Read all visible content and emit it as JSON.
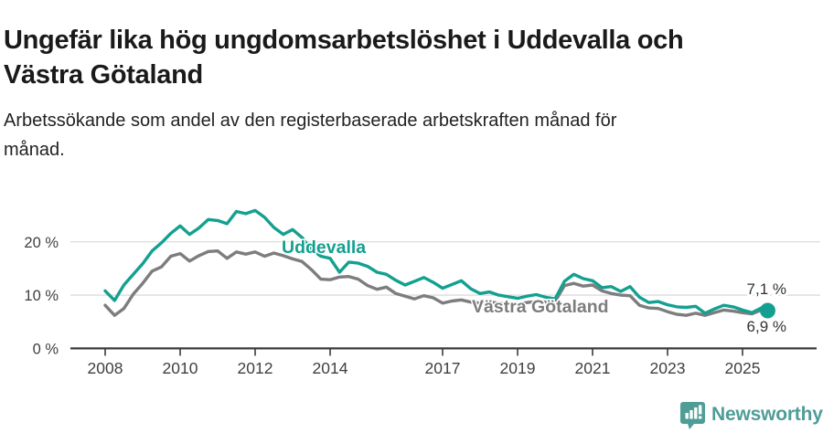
{
  "header": {
    "title": "Ungefär lika hög ungdomsarbetslöshet i Uddevalla och Västra Götaland",
    "title_lines": [
      "Ungefär lika hög ungdomsarbetslöshet i Uddevalla och",
      "Västra Götaland"
    ],
    "subtitle": "Arbetssökande som andel av den registerbaserade arbetskraften månad för månad.",
    "subtitle_lines": [
      "Arbetssökande som andel av den registerbaserade arbetskraften månad för",
      "månad."
    ]
  },
  "chart_data": {
    "type": "line",
    "x_label_note": "quarterly points, years 2008–2025",
    "x": [
      2008.0,
      2008.25,
      2008.5,
      2008.75,
      2009.0,
      2009.25,
      2009.5,
      2009.75,
      2010.0,
      2010.25,
      2010.5,
      2010.75,
      2011.0,
      2011.25,
      2011.5,
      2011.75,
      2012.0,
      2012.25,
      2012.5,
      2012.75,
      2013.0,
      2013.25,
      2013.5,
      2013.75,
      2014.0,
      2014.25,
      2014.5,
      2014.75,
      2015.0,
      2015.25,
      2015.5,
      2015.75,
      2016.0,
      2016.25,
      2016.5,
      2016.75,
      2017.0,
      2017.25,
      2017.5,
      2017.75,
      2018.0,
      2018.25,
      2018.5,
      2018.75,
      2019.0,
      2019.25,
      2019.5,
      2019.75,
      2020.0,
      2020.25,
      2020.5,
      2020.75,
      2021.0,
      2021.25,
      2021.5,
      2021.75,
      2022.0,
      2022.25,
      2022.5,
      2022.75,
      2023.0,
      2023.25,
      2023.5,
      2023.75,
      2024.0,
      2024.25,
      2024.5,
      2024.75,
      2025.0,
      2025.25,
      2025.5,
      2025.67
    ],
    "series": [
      {
        "name": "Uddevalla",
        "color": "#14a090",
        "end_label": "7,1 %",
        "end_dot": true,
        "values": [
          10.8,
          9.0,
          11.9,
          13.9,
          15.9,
          18.3,
          19.8,
          21.6,
          23.0,
          21.4,
          22.6,
          24.2,
          24.0,
          23.4,
          25.7,
          25.3,
          25.9,
          24.6,
          22.7,
          21.4,
          22.3,
          20.8,
          18.6,
          17.3,
          16.9,
          14.3,
          16.2,
          16.0,
          15.4,
          14.3,
          13.9,
          12.8,
          11.9,
          12.6,
          13.3,
          12.4,
          11.3,
          12.0,
          12.7,
          11.2,
          10.3,
          10.6,
          10.0,
          9.7,
          9.4,
          9.8,
          10.1,
          9.6,
          9.3,
          12.6,
          13.9,
          13.1,
          12.7,
          11.4,
          11.6,
          10.7,
          11.6,
          9.6,
          8.6,
          8.8,
          8.2,
          7.8,
          7.7,
          7.9,
          6.6,
          7.4,
          8.1,
          7.8,
          7.2,
          6.7,
          7.6,
          7.1
        ]
      },
      {
        "name": "Västra Götaland",
        "color": "#7d7d7d",
        "end_label": "6,9 %",
        "end_dot": false,
        "values": [
          8.1,
          6.2,
          7.5,
          10.2,
          12.2,
          14.5,
          15.3,
          17.3,
          17.8,
          16.4,
          17.4,
          18.2,
          18.3,
          16.9,
          18.1,
          17.7,
          18.1,
          17.3,
          17.9,
          17.4,
          16.8,
          16.3,
          14.8,
          13.0,
          12.9,
          13.4,
          13.5,
          13.0,
          11.8,
          11.1,
          11.5,
          10.3,
          9.8,
          9.3,
          9.9,
          9.5,
          8.5,
          8.9,
          9.1,
          8.7,
          8.5,
          8.7,
          8.5,
          8.4,
          8.3,
          8.6,
          8.8,
          8.7,
          8.8,
          11.8,
          12.2,
          11.7,
          11.9,
          10.8,
          10.3,
          10.0,
          9.9,
          8.1,
          7.6,
          7.5,
          6.9,
          6.4,
          6.2,
          6.6,
          6.2,
          6.7,
          7.2,
          7.0,
          6.7,
          6.5,
          7.2,
          6.9
        ]
      }
    ],
    "xticks": {
      "values": [
        2008,
        2010,
        2012,
        2014,
        2017,
        2019,
        2021,
        2023,
        2025
      ],
      "labels": [
        "2008",
        "2010",
        "2012",
        "2014",
        "2017",
        "2019",
        "2021",
        "2023",
        "2025"
      ]
    },
    "yticks": {
      "values": [
        0,
        10,
        20
      ],
      "labels": [
        "0 %",
        "10 %",
        "20 %"
      ]
    },
    "ylim": [
      0,
      29
    ],
    "grid": "horizontal",
    "legend": "inline-labels"
  },
  "footer": {
    "brand": "Newsworthy"
  },
  "colors": {
    "accent_teal": "#14a090",
    "series_gray": "#7d7d7d",
    "grid": "#dcdcdc",
    "axis": "#3a3a3a",
    "text": "#333333",
    "logo_teal": "#4e9d96"
  }
}
